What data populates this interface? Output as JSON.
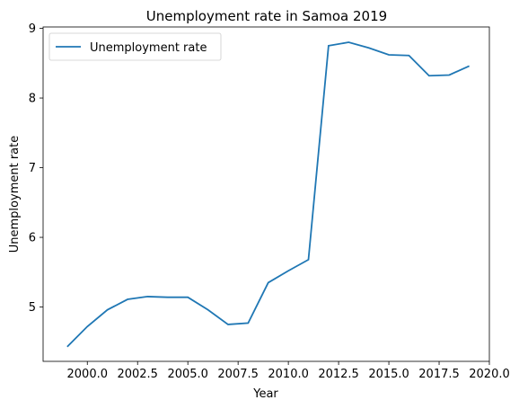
{
  "chart_data": {
    "type": "line",
    "title": "Unemployment rate in Samoa 2019",
    "xlabel": "Year",
    "ylabel": "Unemployment rate",
    "xlim": [
      1997.8,
      2020.0
    ],
    "ylim": [
      4.22,
      9.02
    ],
    "xticks": [
      2000.0,
      2002.5,
      2005.0,
      2007.5,
      2010.0,
      2012.5,
      2015.0,
      2017.5,
      2020.0
    ],
    "xtick_labels": [
      "2000.0",
      "2002.5",
      "2005.0",
      "2007.5",
      "2010.0",
      "2012.5",
      "2015.0",
      "2017.5",
      "2020.0"
    ],
    "yticks": [
      5,
      6,
      7,
      8,
      9
    ],
    "ytick_labels": [
      "5",
      "6",
      "7",
      "8",
      "9"
    ],
    "grid": false,
    "legend": {
      "placement": "top-left",
      "entries": [
        "Unemployment rate"
      ]
    },
    "colors": {
      "line": "#1f77b4"
    },
    "series": [
      {
        "name": "Unemployment rate",
        "x": [
          1999,
          2000,
          2001,
          2002,
          2003,
          2004,
          2005,
          2006,
          2007,
          2008,
          2009,
          2010,
          2011,
          2012,
          2013,
          2014,
          2015,
          2016,
          2017,
          2018,
          2019
        ],
        "y": [
          4.43,
          4.72,
          4.96,
          5.11,
          5.15,
          5.14,
          5.14,
          4.96,
          4.75,
          4.77,
          5.35,
          5.52,
          5.68,
          8.75,
          8.8,
          8.72,
          8.62,
          8.61,
          8.32,
          8.33,
          8.46
        ]
      }
    ]
  }
}
